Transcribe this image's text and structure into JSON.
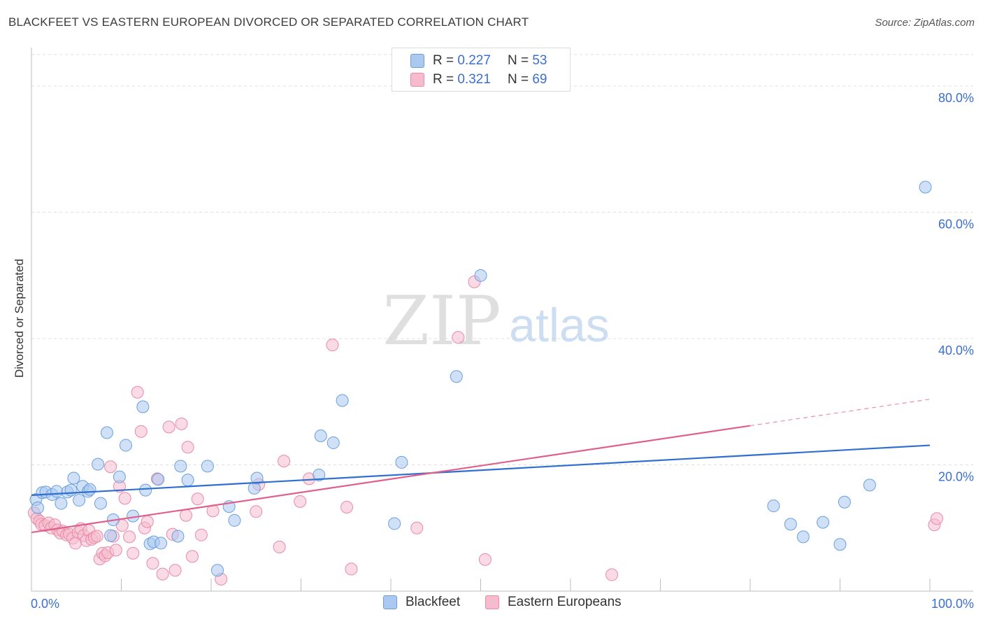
{
  "title": "BLACKFEET VS EASTERN EUROPEAN DIVORCED OR SEPARATED CORRELATION CHART",
  "source": "Source: ZipAtlas.com",
  "watermark": {
    "zip": "ZIP",
    "atlas": "atlas"
  },
  "colors": {
    "blue_fill": "#aac8f0",
    "blue_stroke": "#6a9fdc",
    "blue_line": "#2f6fd0",
    "pink_fill": "#f6bccd",
    "pink_stroke": "#e88aa8",
    "pink_line": "#e0608c",
    "axis_label": "#3a6fd0",
    "grid": "#dddddd"
  },
  "legend": {
    "r_label": "R =",
    "n_label": "N =",
    "blackfeet": {
      "r": "0.227",
      "n": "53"
    },
    "eastern": {
      "r": "0.321",
      "n": "69"
    }
  },
  "chart_data": {
    "type": "scatter",
    "title": "BLACKFEET VS EASTERN EUROPEAN DIVORCED OR SEPARATED CORRELATION CHART",
    "xlabel": "",
    "ylabel": "Divorced or Separated",
    "xlim": [
      0,
      100
    ],
    "ylim": [
      0,
      85
    ],
    "x_tick_labels": [
      "0.0%",
      "100.0%"
    ],
    "y_ticks": [
      20,
      40,
      60,
      80
    ],
    "y_tick_labels": [
      "20.0%",
      "40.0%",
      "60.0%",
      "80.0%"
    ],
    "grid": true,
    "legend_position": "bottom",
    "series": [
      {
        "name": "Blackfeet",
        "r": 0.227,
        "n": 53,
        "trend": {
          "x0": 0,
          "y0": 15.2,
          "x1": 100,
          "y1": 23.1
        },
        "points": [
          [
            0.5,
            14.5
          ],
          [
            0.7,
            13.2
          ],
          [
            1.2,
            15.6
          ],
          [
            1.6,
            15.7
          ],
          [
            2.3,
            15.3
          ],
          [
            2.8,
            15.8
          ],
          [
            3.3,
            13.9
          ],
          [
            4,
            15.7
          ],
          [
            4.4,
            16
          ],
          [
            4.7,
            17.9
          ],
          [
            5.3,
            14.4
          ],
          [
            5.7,
            16.6
          ],
          [
            6.3,
            15.8
          ],
          [
            6.5,
            16.1
          ],
          [
            7.4,
            20.1
          ],
          [
            7.7,
            13.9
          ],
          [
            8.4,
            25.1
          ],
          [
            8.8,
            8.8
          ],
          [
            9.1,
            11.3
          ],
          [
            9.8,
            18.1
          ],
          [
            10.5,
            23.1
          ],
          [
            11.3,
            11.9
          ],
          [
            12.4,
            29.2
          ],
          [
            12.7,
            16
          ],
          [
            13.2,
            7.5
          ],
          [
            13.6,
            7.8
          ],
          [
            14.1,
            17.7
          ],
          [
            14.4,
            7.6
          ],
          [
            16.3,
            8.7
          ],
          [
            16.6,
            19.8
          ],
          [
            17.4,
            17.6
          ],
          [
            19.6,
            19.8
          ],
          [
            20.7,
            3.3
          ],
          [
            22,
            13.4
          ],
          [
            22.6,
            11.2
          ],
          [
            24.8,
            16.3
          ],
          [
            25.1,
            17.9
          ],
          [
            32,
            18.4
          ],
          [
            32.2,
            24.6
          ],
          [
            33.6,
            23.5
          ],
          [
            34.6,
            30.2
          ],
          [
            40.4,
            10.7
          ],
          [
            41.2,
            20.4
          ],
          [
            47.3,
            34
          ],
          [
            50,
            50
          ],
          [
            82.6,
            13.5
          ],
          [
            84.5,
            10.6
          ],
          [
            85.9,
            8.6
          ],
          [
            88.1,
            10.9
          ],
          [
            90,
            7.4
          ],
          [
            90.5,
            14.1
          ],
          [
            93.3,
            16.8
          ],
          [
            99.5,
            64
          ]
        ]
      },
      {
        "name": "Eastern Europeans",
        "r": 0.321,
        "n": 69,
        "trend": {
          "x0": 0,
          "y0": 9.3,
          "x1": 80,
          "y1": 26.2
        },
        "trend_dashed": {
          "x0": 80,
          "y0": 26.2,
          "x1": 100,
          "y1": 30.4
        },
        "points": [
          [
            0.3,
            12.4
          ],
          [
            0.6,
            11.5
          ],
          [
            0.9,
            11.1
          ],
          [
            1.1,
            10.6
          ],
          [
            1.5,
            10.4
          ],
          [
            1.9,
            10.8
          ],
          [
            2.2,
            10
          ],
          [
            2.6,
            10.5
          ],
          [
            2.9,
            9.7
          ],
          [
            3.2,
            9.2
          ],
          [
            3.5,
            9.5
          ],
          [
            3.9,
            8.9
          ],
          [
            4.2,
            9
          ],
          [
            4.6,
            8.4
          ],
          [
            4.9,
            7.6
          ],
          [
            5.2,
            9.3
          ],
          [
            5.5,
            9.9
          ],
          [
            5.8,
            8.8
          ],
          [
            6.1,
            8
          ],
          [
            6.4,
            9.6
          ],
          [
            6.7,
            8.2
          ],
          [
            7,
            8.5
          ],
          [
            7.3,
            8.7
          ],
          [
            7.6,
            5.1
          ],
          [
            7.9,
            6
          ],
          [
            8.2,
            5.6
          ],
          [
            8.5,
            6.1
          ],
          [
            8.8,
            19.7
          ],
          [
            9.1,
            8.7
          ],
          [
            9.4,
            6.5
          ],
          [
            9.8,
            16.6
          ],
          [
            10.1,
            10.4
          ],
          [
            10.4,
            14.7
          ],
          [
            10.9,
            8.6
          ],
          [
            11.3,
            6
          ],
          [
            11.8,
            31.5
          ],
          [
            12.2,
            25.3
          ],
          [
            12.6,
            10
          ],
          [
            12.9,
            11
          ],
          [
            13.5,
            4.4
          ],
          [
            14,
            17.8
          ],
          [
            14.6,
            2.7
          ],
          [
            15.3,
            26
          ],
          [
            15.7,
            9
          ],
          [
            16,
            3.3
          ],
          [
            16.7,
            26.5
          ],
          [
            17.2,
            12
          ],
          [
            17.4,
            22.8
          ],
          [
            17.9,
            5.5
          ],
          [
            18.5,
            14.6
          ],
          [
            18.9,
            8.9
          ],
          [
            20.2,
            12.7
          ],
          [
            21.1,
            1.9
          ],
          [
            25,
            12.6
          ],
          [
            25.3,
            16.9
          ],
          [
            27.6,
            7
          ],
          [
            28.1,
            20.6
          ],
          [
            29.9,
            14.2
          ],
          [
            30.9,
            17.8
          ],
          [
            33.5,
            39
          ],
          [
            35.1,
            13.3
          ],
          [
            35.6,
            3.5
          ],
          [
            42.9,
            10
          ],
          [
            47.5,
            40.2
          ],
          [
            49.3,
            49
          ],
          [
            50.5,
            5
          ],
          [
            64.6,
            2.6
          ],
          [
            100.5,
            10.5
          ],
          [
            101,
            11.5
          ]
        ]
      }
    ]
  }
}
